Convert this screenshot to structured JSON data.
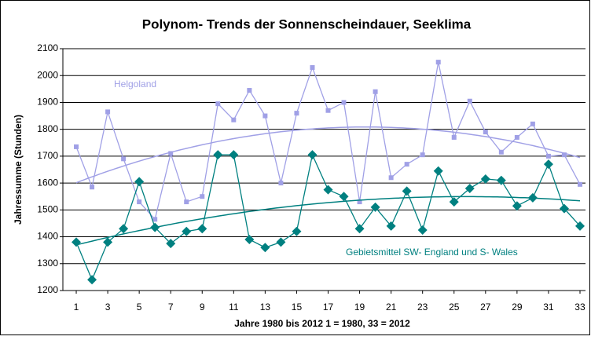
{
  "chart_data": {
    "type": "line",
    "title": "Polynom- Trends der Sonnenscheindauer, Seeklima",
    "x_label": "Jahre 1980 bis 2012 1 = 1980, 33 = 2012",
    "y_label": "Jahressumme (Stunden)",
    "x": [
      1,
      2,
      3,
      4,
      5,
      6,
      7,
      8,
      9,
      10,
      11,
      12,
      13,
      14,
      15,
      16,
      17,
      18,
      19,
      20,
      21,
      22,
      23,
      24,
      25,
      26,
      27,
      28,
      29,
      30,
      31,
      32,
      33
    ],
    "series": [
      {
        "name": "Helgoland",
        "color": "#a0a0e6",
        "marker": "square",
        "values": [
          1735,
          1585,
          1865,
          1690,
          1530,
          1465,
          1710,
          1530,
          1550,
          1895,
          1835,
          1945,
          1850,
          1600,
          1860,
          2030,
          1870,
          1900,
          1530,
          1940,
          1620,
          1670,
          1705,
          2050,
          1770,
          1905,
          1790,
          1715,
          1770,
          1820,
          1700,
          1705,
          1595
        ]
      },
      {
        "name": "Gebietsmittel SW- England und S- Wales",
        "color": "#008080",
        "marker": "diamond",
        "values": [
          1380,
          1240,
          1380,
          1430,
          1605,
          1435,
          1375,
          1420,
          1430,
          1705,
          1705,
          1390,
          1360,
          1380,
          1420,
          1705,
          1575,
          1550,
          1430,
          1510,
          1440,
          1570,
          1425,
          1645,
          1530,
          1580,
          1615,
          1610,
          1515,
          1545,
          1670,
          1505,
          1440
        ]
      }
    ],
    "trendline": {
      "type": "polynomial",
      "order": 2
    },
    "xlim": [
      0.15,
      33.35
    ],
    "xticks": [
      1,
      3,
      5,
      7,
      9,
      11,
      13,
      15,
      17,
      19,
      21,
      23,
      25,
      27,
      29,
      31,
      33
    ],
    "ylim": [
      1200,
      2100
    ],
    "yticks": [
      1200,
      1300,
      1400,
      1500,
      1600,
      1700,
      1800,
      1900,
      2000,
      2100
    ],
    "grid": true
  }
}
